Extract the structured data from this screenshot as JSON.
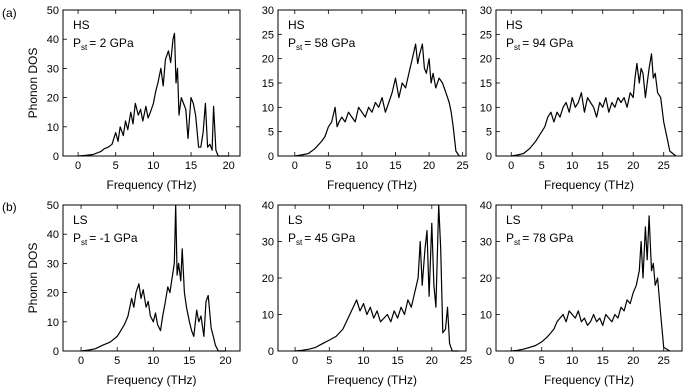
{
  "figure": {
    "row_labels": [
      "(a)",
      "(b)"
    ],
    "ylabel": "Phonon DOS",
    "xlabel": "Frequency (THz)"
  },
  "chart_data": [
    {
      "type": "line",
      "row": "a",
      "label_line1": "HS",
      "label_pressure_prefix": "P",
      "label_pressure_sub": "st",
      "label_pressure_value": "= 2 GPa",
      "xlabel": "Frequency (THz)",
      "ylabel": "Phonon DOS",
      "xlim": [
        -2,
        21.5
      ],
      "ylim": [
        0,
        50
      ],
      "xticks": [
        0,
        5,
        10,
        15,
        20
      ],
      "yticks": [
        0,
        10,
        20,
        30,
        40,
        50
      ],
      "series": [
        {
          "x": [
            0,
            1,
            2,
            3,
            3.5,
            4,
            4.5,
            5,
            5.3,
            5.6,
            6,
            6.3,
            6.6,
            7,
            7.3,
            7.6,
            8,
            8.3,
            8.6,
            9,
            9.3,
            9.6,
            10,
            10.3,
            10.6,
            11,
            11.3,
            11.6,
            12,
            12.3,
            12.6,
            12.8,
            13,
            13.2,
            13.4,
            13.7,
            14,
            14.3,
            14.6,
            15,
            15.3,
            15.6,
            16,
            16.3,
            16.6,
            16.9,
            17.2,
            17.5,
            17.8,
            18,
            18.3,
            18.6,
            19,
            20
          ],
          "y": [
            0,
            0.2,
            0.5,
            1.5,
            2.5,
            3,
            4,
            8,
            5,
            10,
            7,
            12,
            9,
            15,
            11,
            18,
            14,
            16,
            12,
            17,
            13,
            15,
            18,
            22,
            25,
            30,
            24,
            33,
            36,
            32,
            40,
            42,
            25,
            30,
            14,
            20,
            18,
            16,
            6,
            20,
            18,
            14,
            3,
            3,
            8,
            18,
            3,
            4,
            2,
            17,
            2,
            0,
            0,
            0
          ]
        }
      ]
    },
    {
      "type": "line",
      "row": "a",
      "label_line1": "HS",
      "label_pressure_prefix": "P",
      "label_pressure_sub": "st",
      "label_pressure_value": "= 58 GPa",
      "xlabel": "Frequency (THz)",
      "ylabel": "",
      "xlim": [
        -2.5,
        25.5
      ],
      "ylim": [
        0,
        30
      ],
      "xticks": [
        0,
        5,
        10,
        15,
        20,
        25
      ],
      "yticks": [
        0,
        5,
        10,
        15,
        20,
        25,
        30
      ],
      "series": [
        {
          "x": [
            0,
            1,
            2,
            3,
            4,
            4.5,
            5,
            5.5,
            6,
            6.3,
            6.6,
            7,
            7.5,
            8,
            8.5,
            9,
            9.5,
            10,
            10.5,
            11,
            11.5,
            12,
            12.5,
            13,
            13.5,
            14,
            14.5,
            15,
            15.5,
            16,
            16.5,
            17,
            17.5,
            18,
            18.3,
            18.6,
            19,
            19.3,
            19.6,
            20,
            20.3,
            20.6,
            21,
            21.5,
            22,
            22.5,
            23,
            23.3,
            23.6,
            24,
            24.5
          ],
          "y": [
            0,
            0.2,
            0.5,
            1.5,
            3,
            4,
            6,
            7,
            10,
            6,
            7,
            8,
            7,
            9,
            8,
            7,
            10,
            9,
            8,
            10,
            9,
            11,
            10,
            12,
            9,
            11,
            13,
            16,
            12,
            15,
            14,
            17,
            20,
            23,
            19,
            21,
            23,
            18,
            17,
            20,
            15,
            17,
            14,
            16,
            15,
            13,
            11,
            9,
            6,
            1,
            0
          ]
        }
      ]
    },
    {
      "type": "line",
      "row": "a",
      "label_line1": "HS",
      "label_pressure_prefix": "P",
      "label_pressure_sub": "st",
      "label_pressure_value": "= 94 GPa",
      "xlabel": "Frequency (THz)",
      "ylabel": "",
      "xlim": [
        -2.5,
        28
      ],
      "ylim": [
        0,
        30
      ],
      "xticks": [
        0,
        5,
        10,
        15,
        20,
        25
      ],
      "yticks": [
        0,
        5,
        10,
        15,
        20,
        25,
        30
      ],
      "series": [
        {
          "x": [
            0,
            1,
            2,
            3,
            4,
            5,
            5.5,
            6,
            6.5,
            7,
            7.5,
            8,
            8.5,
            9,
            9.5,
            10,
            10.5,
            11,
            11.5,
            12,
            12.5,
            13,
            13.5,
            14,
            14.5,
            15,
            15.5,
            16,
            16.5,
            17,
            17.5,
            18,
            18.5,
            19,
            19.5,
            20,
            20.3,
            20.6,
            21,
            21.3,
            21.6,
            22,
            22.3,
            22.6,
            23,
            23.3,
            23.6,
            24,
            24.5,
            25,
            25.5,
            26,
            27
          ],
          "y": [
            0,
            0.2,
            0.5,
            1.5,
            3,
            5,
            6,
            8,
            9,
            7,
            9,
            8,
            10,
            11,
            9,
            12,
            10,
            11,
            13,
            9,
            12,
            11,
            10,
            8,
            11,
            10,
            12,
            9,
            11,
            10,
            12,
            11,
            12,
            10,
            13,
            12,
            16,
            19,
            15,
            18,
            17,
            12,
            15,
            18,
            21,
            16,
            17,
            13,
            12,
            7,
            4,
            1,
            0
          ]
        }
      ]
    },
    {
      "type": "line",
      "row": "b",
      "label_line1": "LS",
      "label_pressure_prefix": "P",
      "label_pressure_sub": "st",
      "label_pressure_value": "= -1 GPa",
      "xlabel": "Frequency (THz)",
      "ylabel": "Phonon DOS",
      "xlim": [
        -2.5,
        22
      ],
      "ylim": [
        0,
        50
      ],
      "xticks": [
        0,
        5,
        10,
        15,
        20
      ],
      "yticks": [
        0,
        10,
        20,
        30,
        40,
        50
      ],
      "series": [
        {
          "x": [
            0,
            1,
            2,
            3,
            4,
            5,
            6,
            6.5,
            7,
            7.3,
            7.6,
            8,
            8.3,
            8.6,
            9,
            9.3,
            9.6,
            10,
            10.3,
            10.6,
            11,
            11.3,
            11.6,
            12,
            12.3,
            12.6,
            12.9,
            13.1,
            13.3,
            13.5,
            13.8,
            14,
            14.3,
            14.6,
            15,
            15.3,
            15.6,
            16,
            16.3,
            16.6,
            17,
            17.3,
            17.6,
            18,
            18.3,
            18.6,
            19,
            20
          ],
          "y": [
            0,
            0.3,
            0.8,
            2,
            3,
            5,
            9,
            12,
            18,
            15,
            20,
            23,
            18,
            21,
            15,
            17,
            12,
            10,
            13,
            9,
            7,
            12,
            16,
            22,
            20,
            25,
            30,
            50,
            26,
            30,
            24,
            35,
            20,
            15,
            10,
            7,
            5,
            14,
            10,
            12,
            5,
            17,
            19,
            8,
            5,
            2,
            0,
            0
          ]
        }
      ]
    },
    {
      "type": "line",
      "row": "b",
      "label_line1": "LS",
      "label_pressure_prefix": "P",
      "label_pressure_sub": "st",
      "label_pressure_value": "= 45 GPa",
      "xlabel": "Frequency (THz)",
      "ylabel": "",
      "xlim": [
        -2.5,
        25
      ],
      "ylim": [
        0,
        40
      ],
      "xticks": [
        0,
        5,
        10,
        15,
        20,
        25
      ],
      "yticks": [
        0,
        10,
        20,
        30,
        40
      ],
      "series": [
        {
          "x": [
            0,
            1,
            2,
            3,
            4,
            5,
            6,
            7,
            7.5,
            8,
            8.5,
            9,
            9.5,
            10,
            10.5,
            11,
            11.5,
            12,
            12.5,
            13,
            13.5,
            14,
            14.5,
            15,
            15.5,
            16,
            16.5,
            17,
            17.5,
            18,
            18.3,
            18.6,
            19,
            19.3,
            19.6,
            20,
            20.3,
            20.6,
            21,
            21.3,
            21.6,
            22,
            22.3,
            22.6,
            23,
            24
          ],
          "y": [
            0,
            0.2,
            0.5,
            1,
            2,
            3,
            4,
            6,
            8,
            10,
            12,
            14,
            11,
            13,
            10,
            12,
            9,
            11,
            8,
            9,
            10,
            8,
            11,
            9,
            12,
            10,
            14,
            12,
            16,
            20,
            30,
            18,
            28,
            33,
            15,
            35,
            18,
            12,
            40,
            28,
            5,
            6,
            12,
            2,
            0,
            0
          ]
        }
      ]
    },
    {
      "type": "line",
      "row": "b",
      "label_line1": "LS",
      "label_pressure_prefix": "P",
      "label_pressure_sub": "st",
      "label_pressure_value": "= 78 GPa",
      "xlabel": "Frequency (THz)",
      "ylabel": "",
      "xlim": [
        -2.5,
        28
      ],
      "ylim": [
        0,
        40
      ],
      "xticks": [
        0,
        5,
        10,
        15,
        20,
        25
      ],
      "yticks": [
        0,
        10,
        20,
        30,
        40
      ],
      "series": [
        {
          "x": [
            0,
            1,
            2,
            3,
            4,
            5,
            6,
            7,
            7.5,
            8,
            8.5,
            9,
            9.5,
            10,
            10.5,
            11,
            11.5,
            12,
            12.5,
            13,
            13.5,
            14,
            14.5,
            15,
            15.5,
            16,
            16.5,
            17,
            17.5,
            18,
            18.5,
            19,
            19.5,
            20,
            20.5,
            21,
            21.3,
            21.6,
            22,
            22.3,
            22.6,
            23,
            23.3,
            23.6,
            24,
            24.5,
            25,
            26
          ],
          "y": [
            0,
            0.2,
            0.5,
            1,
            1.5,
            2.5,
            4,
            6,
            8,
            9,
            10,
            8,
            11,
            10,
            9,
            11,
            8,
            9,
            7,
            8,
            10,
            8,
            9,
            7,
            10,
            9,
            8,
            10,
            9,
            12,
            11,
            14,
            13,
            16,
            18,
            22,
            30,
            20,
            34,
            25,
            37,
            22,
            24,
            18,
            20,
            10,
            1,
            0
          ]
        }
      ]
    }
  ]
}
